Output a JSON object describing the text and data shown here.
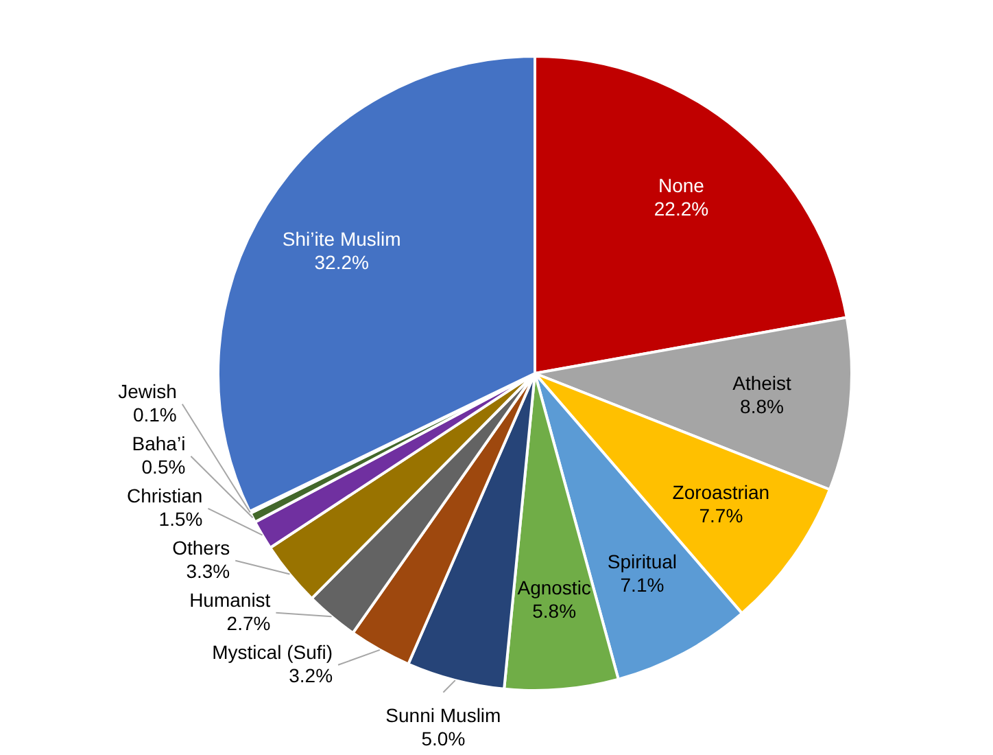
{
  "chart_data": {
    "type": "pie",
    "categories": [
      "None",
      "Atheist",
      "Zoroastrian",
      "Spiritual",
      "Agnostic",
      "Sunni Muslim",
      "Mystical (Sufi)",
      "Humanist",
      "Others",
      "Christian",
      "Baha’i",
      "Jewish",
      "Shi’ite Muslim"
    ],
    "values": [
      22.2,
      8.8,
      7.7,
      7.1,
      5.8,
      5.0,
      3.2,
      2.7,
      3.3,
      1.5,
      0.5,
      0.1,
      32.2
    ],
    "value_labels": [
      "22.2%",
      "8.8%",
      "7.7%",
      "7.1%",
      "5.8%",
      "5.0%",
      "3.2%",
      "2.7%",
      "3.3%",
      "1.5%",
      "0.5%",
      "0.1%",
      "32.2%"
    ],
    "colors": [
      "#c00000",
      "#a5a5a5",
      "#ffc000",
      "#5b9bd5",
      "#70ad47",
      "#264478",
      "#9e480e",
      "#636363",
      "#997300",
      "#7030a0",
      "#43682b",
      "#4472c4",
      "#4472c4"
    ],
    "legend": false
  }
}
